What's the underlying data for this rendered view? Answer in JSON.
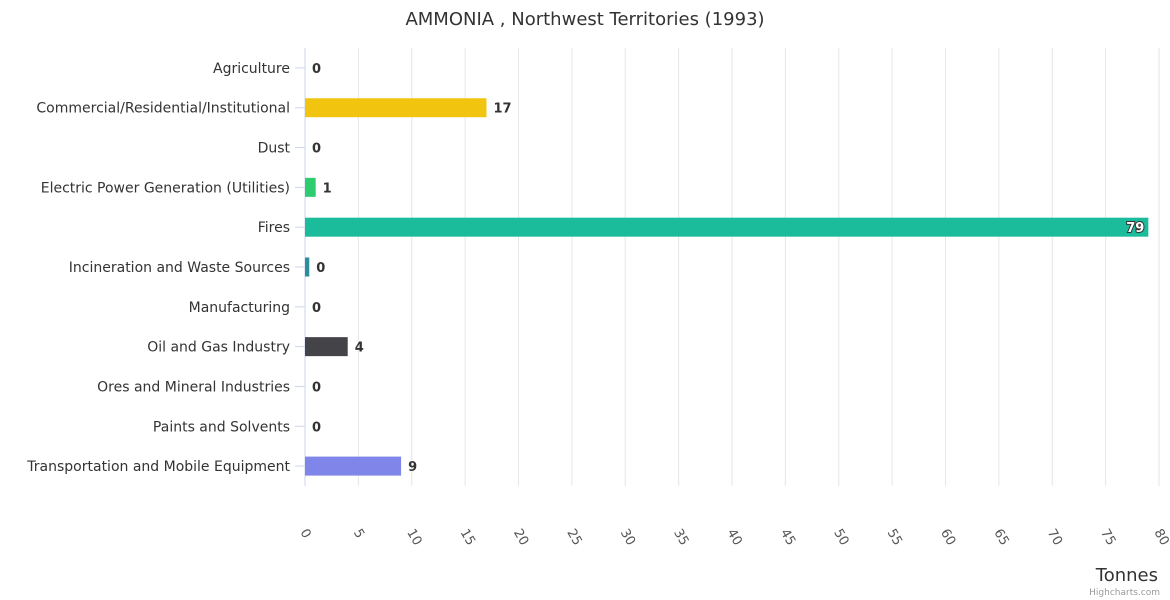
{
  "chart_data": {
    "type": "bar",
    "orientation": "horizontal",
    "title": "AMMONIA , Northwest Territories (1993)",
    "categories": [
      "Agriculture",
      "Commercial/Residential/Institutional",
      "Dust",
      "Electric Power Generation (Utilities)",
      "Fires",
      "Incineration and Waste Sources",
      "Manufacturing",
      "Oil and Gas Industry",
      "Ores and Mineral Industries",
      "Paints and Solvents",
      "Transportation and Mobile Equipment"
    ],
    "values": [
      0,
      17,
      0,
      1,
      79,
      0.4,
      0,
      4,
      0,
      0,
      9
    ],
    "data_labels": [
      "0",
      "17",
      "0",
      "1",
      "79",
      "0",
      "0",
      "4",
      "0",
      "0",
      "9"
    ],
    "colors": [
      "#2caffe",
      "#f1c40f",
      "#8e44ad",
      "#2ecc71",
      "#1abc9c",
      "#2a8f9a",
      "#e67e22",
      "#434348",
      "#90ed7d",
      "#f7a35c",
      "#8085e9"
    ],
    "xlabel": "Tonnes",
    "xlim": [
      0,
      80
    ],
    "ticks": [
      0,
      5,
      10,
      15,
      20,
      25,
      30,
      35,
      40,
      45,
      50,
      55,
      60,
      65,
      70,
      75,
      80
    ],
    "tick_labels": [
      "0",
      "5",
      "10",
      "15",
      "20",
      "25",
      "30",
      "35",
      "40",
      "45",
      "50",
      "55",
      "60",
      "65",
      "70",
      "75",
      "80"
    ],
    "grid": true,
    "legend": "none"
  },
  "credits": "Highcharts.com"
}
